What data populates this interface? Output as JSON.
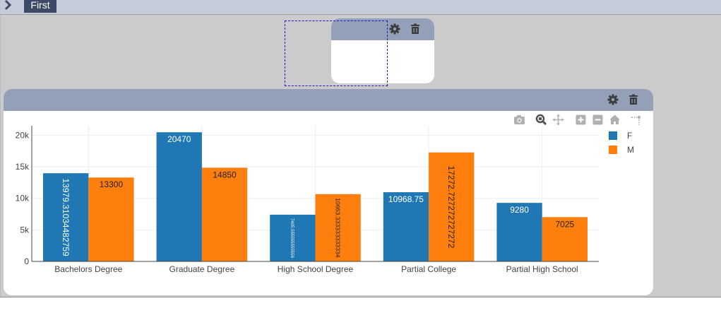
{
  "tab": {
    "label": "First"
  },
  "chart_data": {
    "type": "bar",
    "categories": [
      "Bachelors Degree",
      "Graduate Degree",
      "High School Degree",
      "Partial College",
      "Partial High School"
    ],
    "series": [
      {
        "name": "F",
        "color": "#1f77b4",
        "values": [
          13979.31034482759,
          20470,
          7405.555555555556,
          10968.75,
          9280
        ],
        "labels": [
          "13979.31034482759",
          "20470",
          "7405.555555555556",
          "10968.75",
          "9280"
        ]
      },
      {
        "name": "M",
        "color": "#ff7f0e",
        "values": [
          13300,
          14850,
          10663.333333333334,
          17272.727272727272,
          7025
        ],
        "labels": [
          "13300",
          "14850",
          "10663.333333333334",
          "17272.727272727272",
          "7025"
        ]
      }
    ],
    "y_ticks": [
      0,
      5000,
      10000,
      15000,
      20000
    ],
    "y_tick_labels": [
      "0",
      "5k",
      "10k",
      "15k",
      "20k"
    ],
    "ylim": [
      0,
      21500
    ],
    "grid": true,
    "legend": "top-right"
  },
  "icons": {
    "toggle": "chevron-right-icon",
    "settings": "gear-icon",
    "delete": "trash-icon",
    "modebar": [
      "camera-icon",
      "zoom-icon",
      "pan-icon",
      "zoom-in-icon",
      "zoom-out-icon",
      "reset-axes-icon",
      "spike-lines-icon"
    ]
  }
}
